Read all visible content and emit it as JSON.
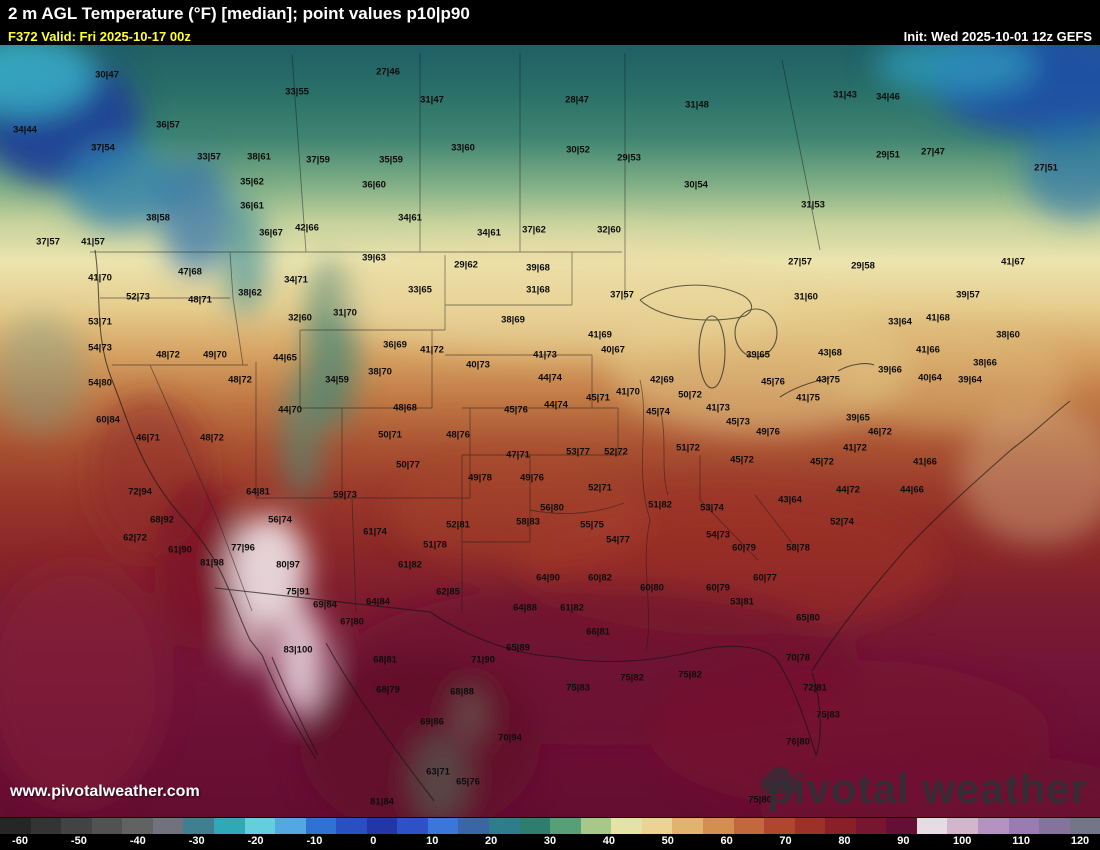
{
  "header": {
    "title": "2 m AGL Temperature (°F) [median]; point values p10|p90",
    "valid": "F372 Valid: Fri 2025-10-17 00z",
    "init": "Init: Wed 2025-10-01 12z GEFS"
  },
  "watermark": {
    "url": "www.pivotalweather.com",
    "logo": "pivotal weather"
  },
  "colors": {
    "bar_background": "#000000",
    "valid_text": "#ffff33",
    "init_text": "#ffffff"
  },
  "colorbar": {
    "min": -60,
    "max": 120,
    "tick_labels": [
      -60,
      -50,
      -40,
      -30,
      -20,
      -10,
      0,
      10,
      20,
      30,
      40,
      50,
      60,
      70,
      80,
      90,
      100,
      110,
      120
    ],
    "segments": [
      "#262626",
      "#343434",
      "#434343",
      "#525252",
      "#626262",
      "#72727e",
      "#3f7f8f",
      "#2fa8b8",
      "#63cede",
      "#52a8e0",
      "#2f72d2",
      "#2a4fc0",
      "#2236a8",
      "#2e51c6",
      "#3b77d8",
      "#3a66a6",
      "#2f7d8c",
      "#2e7d6e",
      "#57a077",
      "#a8c88a",
      "#e6e2a6",
      "#ecd392",
      "#e0b46e",
      "#d28f50",
      "#c2683a",
      "#ae472e",
      "#9c3128",
      "#8a2027",
      "#761631",
      "#640f35",
      "#e8dce4",
      "#d4b6cc",
      "#b592c2",
      "#9a7cb2",
      "#85739e",
      "#757588"
    ]
  },
  "map": {
    "points": [
      [
        "30|47",
        107,
        30
      ],
      [
        "27|46",
        388,
        27
      ],
      [
        "33|55",
        297,
        47
      ],
      [
        "31|47",
        432,
        55
      ],
      [
        "28|47",
        577,
        55
      ],
      [
        "31|48",
        697,
        60
      ],
      [
        "31|43",
        845,
        50
      ],
      [
        "34|46",
        888,
        52
      ],
      [
        "34|44",
        25,
        85
      ],
      [
        "36|57",
        168,
        80
      ],
      [
        "37|54",
        103,
        103
      ],
      [
        "33|57",
        209,
        112
      ],
      [
        "38|61",
        259,
        112
      ],
      [
        "37|59",
        318,
        115
      ],
      [
        "35|59",
        391,
        115
      ],
      [
        "33|60",
        463,
        103
      ],
      [
        "30|52",
        578,
        105
      ],
      [
        "29|53",
        629,
        113
      ],
      [
        "29|51",
        888,
        110
      ],
      [
        "27|47",
        933,
        107
      ],
      [
        "27|51",
        1046,
        123
      ],
      [
        "35|62",
        252,
        137
      ],
      [
        "36|60",
        374,
        140
      ],
      [
        "30|54",
        696,
        140
      ],
      [
        "36|61",
        252,
        161
      ],
      [
        "38|58",
        158,
        173
      ],
      [
        "34|61",
        410,
        173
      ],
      [
        "31|53",
        813,
        160
      ],
      [
        "36|67",
        271,
        188
      ],
      [
        "42|66",
        307,
        183
      ],
      [
        "34|61",
        489,
        188
      ],
      [
        "37|62",
        534,
        185
      ],
      [
        "32|60",
        609,
        185
      ],
      [
        "37|57",
        48,
        197
      ],
      [
        "41|57",
        93,
        197
      ],
      [
        "39|63",
        374,
        213
      ],
      [
        "29|62",
        466,
        220
      ],
      [
        "39|68",
        538,
        223
      ],
      [
        "27|57",
        800,
        217
      ],
      [
        "29|58",
        863,
        221
      ],
      [
        "41|67",
        1013,
        217
      ],
      [
        "41|70",
        100,
        233
      ],
      [
        "47|68",
        190,
        227
      ],
      [
        "34|71",
        296,
        235
      ],
      [
        "33|65",
        420,
        245
      ],
      [
        "31|68",
        538,
        245
      ],
      [
        "37|57",
        622,
        250
      ],
      [
        "39|57",
        968,
        250
      ],
      [
        "52|73",
        138,
        252
      ],
      [
        "48|71",
        200,
        255
      ],
      [
        "38|62",
        250,
        248
      ],
      [
        "31|60",
        806,
        252
      ],
      [
        "53|71",
        100,
        277
      ],
      [
        "32|60",
        300,
        273
      ],
      [
        "31|70",
        345,
        268
      ],
      [
        "38|69",
        513,
        275
      ],
      [
        "33|64",
        900,
        277
      ],
      [
        "41|68",
        938,
        273
      ],
      [
        "38|60",
        1008,
        290
      ],
      [
        "54|73",
        100,
        303
      ],
      [
        "48|72",
        168,
        310
      ],
      [
        "49|70",
        215,
        310
      ],
      [
        "36|69",
        395,
        300
      ],
      [
        "41|72",
        432,
        305
      ],
      [
        "41|69",
        600,
        290
      ],
      [
        "41|73",
        545,
        310
      ],
      [
        "40|67",
        613,
        305
      ],
      [
        "39|65",
        758,
        310
      ],
      [
        "43|68",
        830,
        308
      ],
      [
        "41|66",
        928,
        305
      ],
      [
        "38|66",
        985,
        318
      ],
      [
        "54|80",
        100,
        338
      ],
      [
        "48|72",
        240,
        335
      ],
      [
        "44|65",
        285,
        313
      ],
      [
        "34|59",
        337,
        335
      ],
      [
        "38|70",
        380,
        327
      ],
      [
        "40|73",
        478,
        320
      ],
      [
        "44|74",
        550,
        333
      ],
      [
        "41|70",
        628,
        347
      ],
      [
        "42|69",
        662,
        335
      ],
      [
        "50|72",
        690,
        350
      ],
      [
        "45|76",
        773,
        337
      ],
      [
        "43|75",
        828,
        335
      ],
      [
        "39|66",
        890,
        325
      ],
      [
        "40|64",
        930,
        333
      ],
      [
        "39|64",
        970,
        335
      ],
      [
        "60|84",
        108,
        375
      ],
      [
        "46|71",
        148,
        393
      ],
      [
        "44|70",
        290,
        365
      ],
      [
        "48|68",
        405,
        363
      ],
      [
        "45|76",
        516,
        365
      ],
      [
        "44|74",
        556,
        360
      ],
      [
        "45|71",
        598,
        353
      ],
      [
        "45|74",
        658,
        367
      ],
      [
        "41|73",
        718,
        363
      ],
      [
        "45|73",
        738,
        377
      ],
      [
        "41|75",
        808,
        353
      ],
      [
        "39|65",
        858,
        373
      ],
      [
        "48|72",
        212,
        393
      ],
      [
        "50|71",
        390,
        390
      ],
      [
        "48|76",
        458,
        390
      ],
      [
        "47|71",
        518,
        410
      ],
      [
        "53|77",
        578,
        407
      ],
      [
        "52|72",
        616,
        407
      ],
      [
        "51|72",
        688,
        403
      ],
      [
        "45|72",
        742,
        415
      ],
      [
        "49|76",
        768,
        387
      ],
      [
        "45|72",
        822,
        417
      ],
      [
        "41|72",
        855,
        403
      ],
      [
        "46|72",
        880,
        387
      ],
      [
        "41|66",
        925,
        417
      ],
      [
        "44|66",
        912,
        445
      ],
      [
        "72|94",
        140,
        447
      ],
      [
        "64|81",
        258,
        447
      ],
      [
        "59|73",
        345,
        450
      ],
      [
        "50|77",
        408,
        420
      ],
      [
        "49|78",
        480,
        433
      ],
      [
        "49|76",
        532,
        433
      ],
      [
        "52|71",
        600,
        443
      ],
      [
        "51|82",
        660,
        460
      ],
      [
        "53|74",
        712,
        463
      ],
      [
        "43|64",
        790,
        455
      ],
      [
        "44|72",
        848,
        445
      ],
      [
        "68|92",
        162,
        475
      ],
      [
        "62|72",
        135,
        493
      ],
      [
        "61|90",
        180,
        505
      ],
      [
        "77|96",
        243,
        503
      ],
      [
        "81|98",
        212,
        518
      ],
      [
        "80|97",
        288,
        520
      ],
      [
        "75|91",
        298,
        547
      ],
      [
        "69|84",
        325,
        560
      ],
      [
        "67|80",
        352,
        577
      ],
      [
        "56|74",
        280,
        475
      ],
      [
        "61|74",
        375,
        487
      ],
      [
        "52|81",
        458,
        480
      ],
      [
        "58|83",
        528,
        477
      ],
      [
        "55|75",
        592,
        480
      ],
      [
        "56|80",
        552,
        463
      ],
      [
        "51|78",
        435,
        500
      ],
      [
        "54|77",
        618,
        495
      ],
      [
        "54|73",
        718,
        490
      ],
      [
        "60|79",
        744,
        503
      ],
      [
        "58|78",
        798,
        503
      ],
      [
        "52|74",
        842,
        477
      ],
      [
        "61|82",
        410,
        520
      ],
      [
        "62|85",
        448,
        547
      ],
      [
        "64|84",
        378,
        557
      ],
      [
        "64|88",
        525,
        563
      ],
      [
        "64|90",
        548,
        533
      ],
      [
        "60|82",
        600,
        533
      ],
      [
        "60|80",
        652,
        543
      ],
      [
        "60|79",
        718,
        543
      ],
      [
        "60|77",
        765,
        533
      ],
      [
        "53|81",
        742,
        557
      ],
      [
        "65|80",
        808,
        573
      ],
      [
        "70|78",
        798,
        613
      ],
      [
        "72|81",
        815,
        643
      ],
      [
        "75|83",
        828,
        670
      ],
      [
        "76|80",
        798,
        697
      ],
      [
        "75|82",
        632,
        633
      ],
      [
        "75|82",
        690,
        630
      ],
      [
        "75|83",
        578,
        643
      ],
      [
        "71|90",
        483,
        615
      ],
      [
        "65|89",
        518,
        603
      ],
      [
        "61|82",
        572,
        563
      ],
      [
        "66|81",
        598,
        587
      ],
      [
        "83|100",
        298,
        605
      ],
      [
        "68|81",
        385,
        615
      ],
      [
        "68|79",
        388,
        645
      ],
      [
        "68|88",
        462,
        647
      ],
      [
        "69|86",
        432,
        677
      ],
      [
        "70|94",
        510,
        693
      ],
      [
        "63|71",
        438,
        727
      ],
      [
        "65|76",
        468,
        737
      ],
      [
        "81|84",
        382,
        757
      ],
      [
        "75|80",
        760,
        755
      ]
    ]
  }
}
